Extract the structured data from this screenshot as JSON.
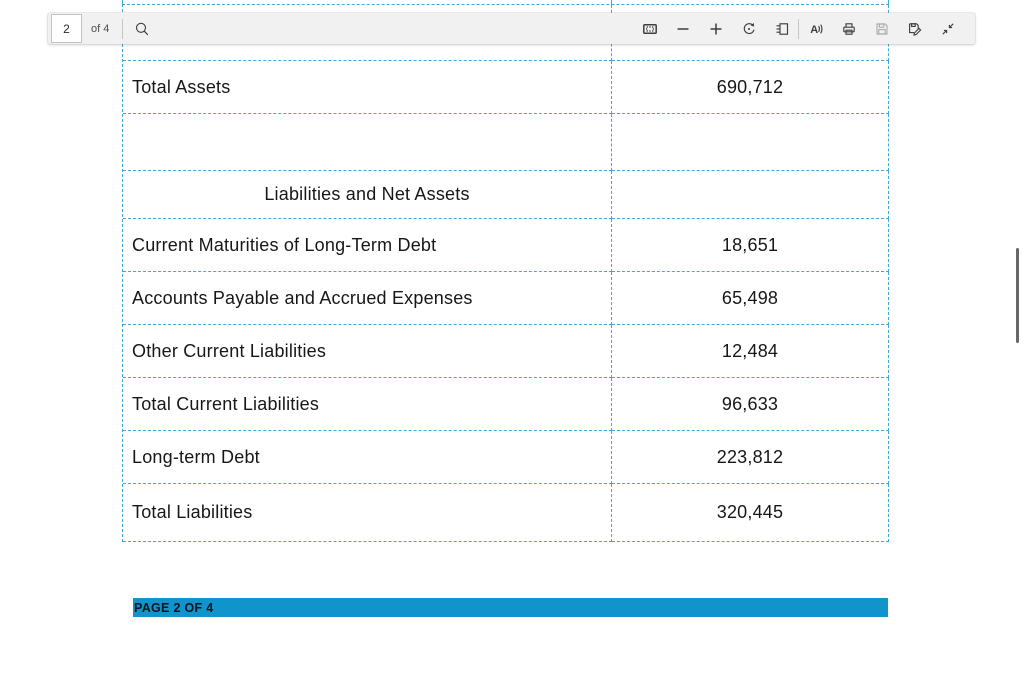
{
  "colors": {
    "grid_dash": "#3fa9dc",
    "footer_bar": "#1194cc",
    "toolbar_bg": "#f1f1f1"
  },
  "toolbar": {
    "page_number": "2",
    "page_count_label": "of 4",
    "read_aloud_glyph": "A",
    "icons": [
      "search",
      "fit-to-page",
      "zoom-out",
      "zoom-in",
      "rotate",
      "page-view",
      "read-aloud",
      "print",
      "save",
      "save-as",
      "collapse"
    ]
  },
  "document": {
    "table": {
      "rows": [
        {
          "type": "spacer",
          "label": "",
          "value": ""
        },
        {
          "type": "data",
          "label": "Total Assets",
          "value": "690,712"
        },
        {
          "type": "empty",
          "label": "",
          "value": ""
        },
        {
          "type": "header",
          "label": "Liabilities and Net Assets",
          "value": ""
        },
        {
          "type": "data",
          "label": "Current Maturities of Long-Term Debt",
          "value": "18,651"
        },
        {
          "type": "data",
          "label": "Accounts Payable and Accrued Expenses",
          "value": "65,498"
        },
        {
          "type": "data",
          "label": "Other Current Liabilities",
          "value": "12,484"
        },
        {
          "type": "data",
          "label": "Total Current Liabilities",
          "value": "96,633"
        },
        {
          "type": "data",
          "label": "Long-term Debt",
          "value": "223,812"
        },
        {
          "type": "data",
          "label": "Total Liabilities",
          "value": "320,445"
        }
      ]
    },
    "footer_label": "PAGE 2 OF 4"
  }
}
